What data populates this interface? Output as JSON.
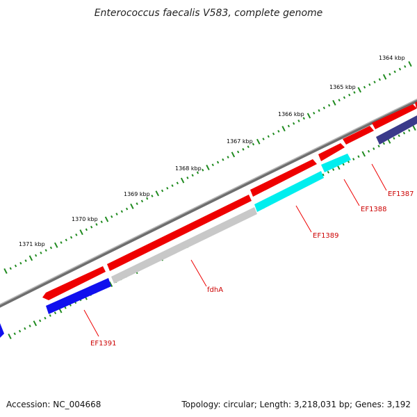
{
  "title": "Enterococcus faecalis V583, complete genome",
  "footer": {
    "accession": "Accession: NC_004668",
    "summary": "Topology: circular; Length: 3,218,031 bp; Genes: 3,192"
  },
  "ticks": [
    "1364 kbp",
    "1365 kbp",
    "1366 kbp",
    "1367 kbp",
    "1368 kbp",
    "1369 kbp",
    "1370 kbp",
    "1371 kbp"
  ],
  "gene_labels": [
    "EF1387",
    "EF1388",
    "EF1389",
    "fdhA",
    "EF1391"
  ],
  "colors": {
    "backbone": "#808080",
    "forward_cds": "#ee0000",
    "reverse_cds": "#1010ee",
    "reverse_cds_cyan": "#00eeee",
    "reverse_cds_gray": "#c8c8c8",
    "reverse_cds_navy": "#3a3a8a",
    "tick": "#1f8a1f",
    "label": "#cc0000"
  }
}
